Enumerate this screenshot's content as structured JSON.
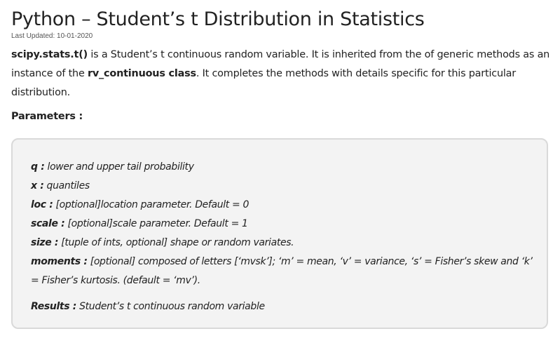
{
  "article": {
    "title": "Python – Student’s t Distribution in Statistics",
    "last_updated": "Last Updated: 10-01-2020",
    "intro": {
      "func_name": "scipy.stats.t()",
      "text1": " is a Student’s t continuous random variable. It is inherited from the of generic methods as an instance of the ",
      "class_name": "rv_continuous class",
      "text2": ". It completes the methods with details specific for this particular distribution."
    },
    "parameters_heading": "Parameters :"
  },
  "params": [
    {
      "key": "q :",
      "desc": " lower and upper tail probability"
    },
    {
      "key": "x :",
      "desc": " quantiles"
    },
    {
      "key": "loc :",
      "desc": " [optional]location parameter. Default = 0"
    },
    {
      "key": "scale :",
      "desc": " [optional]scale parameter. Default = 1"
    },
    {
      "key": "size :",
      "desc": " [tuple of ints, optional] shape or random variates."
    },
    {
      "key": "moments :",
      "desc": " [optional] composed of letters [‘mvsk’]; ‘m’ = mean, ‘v’ = variance, ‘s’ = Fisher’s skew and ‘k’ = Fisher’s kurtosis. (default = ‘mv’)."
    }
  ],
  "results": {
    "key": "Results :",
    "desc": " Student’s t continuous random variable"
  }
}
